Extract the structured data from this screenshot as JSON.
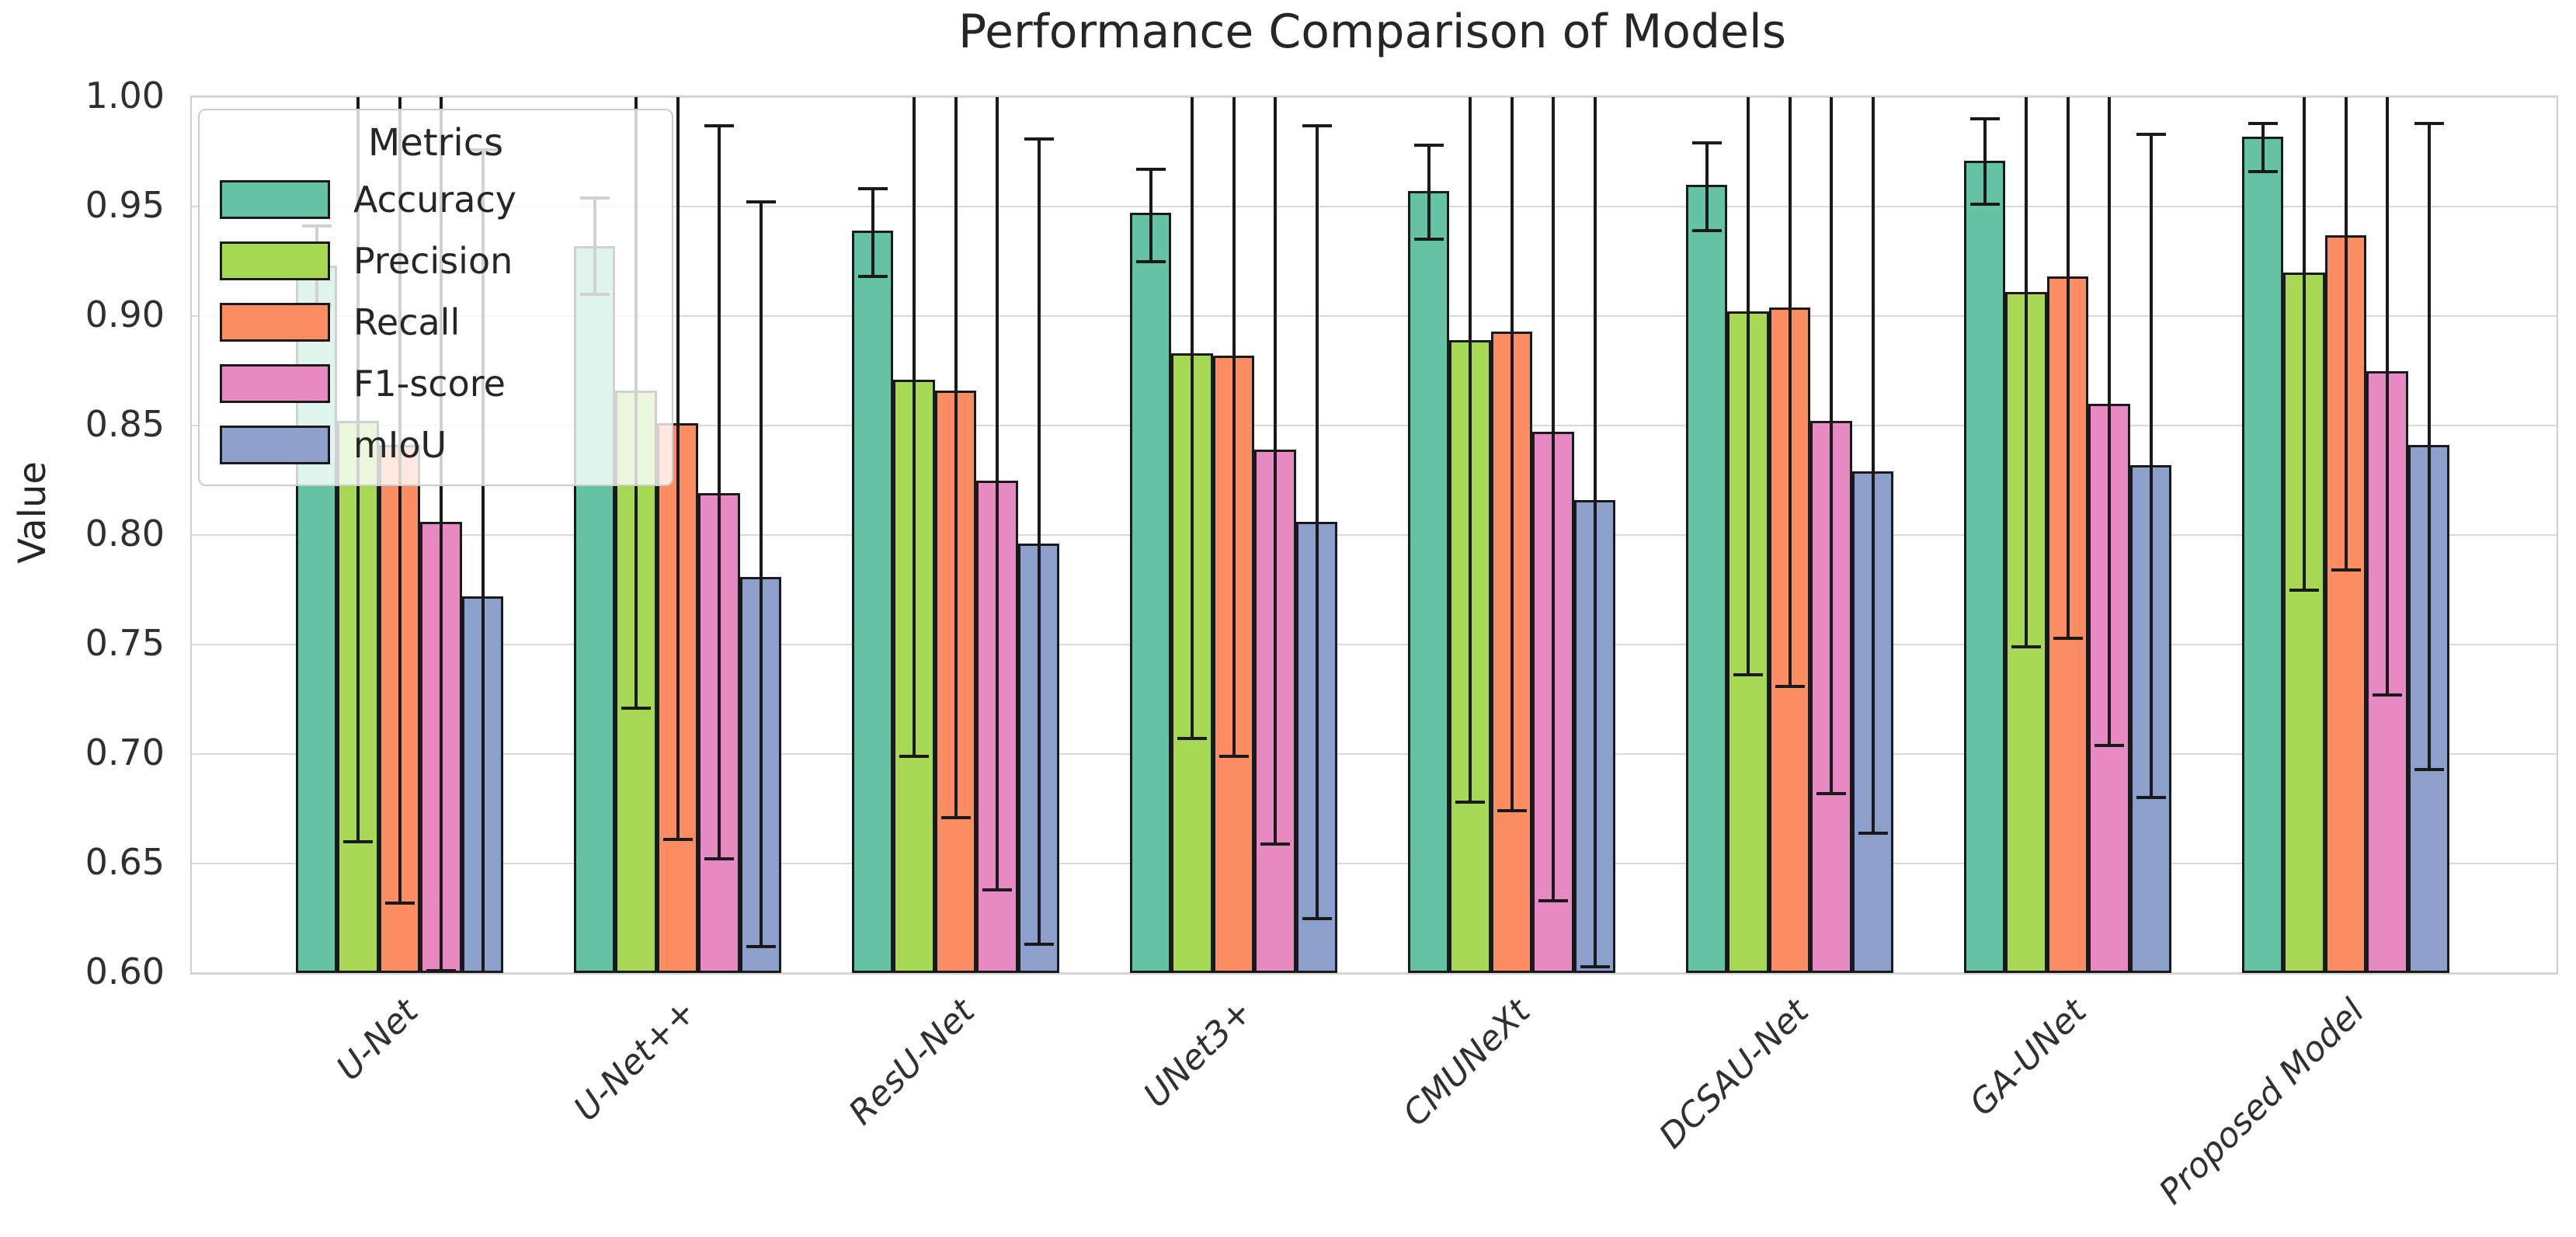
{
  "chart_data": {
    "type": "bar",
    "title": "Performance Comparison of Models",
    "xlabel": "",
    "ylabel": "Value",
    "ylim": [
      0.6,
      1.0
    ],
    "ytick_step": 0.05,
    "grid": "horizontal",
    "legend_title": "Metrics",
    "legend_position": "upper-left",
    "bar_edge_color": "#1a1a1a",
    "error_bar_color": "#1a1a1a",
    "categories": [
      "U-Net",
      "U-Net++",
      "ResU-Net",
      "UNet3+",
      "CMUNeXt",
      "DCSAU-Net",
      "GA-UNet",
      "Proposed Model"
    ],
    "series": [
      {
        "name": "Accuracy",
        "color": "#66c2a5",
        "values": [
          0.923,
          0.932,
          0.939,
          0.947,
          0.957,
          0.96,
          0.971,
          0.982
        ],
        "err_low": [
          0.905,
          0.91,
          0.918,
          0.925,
          0.935,
          0.939,
          0.951,
          0.966
        ],
        "err_high": [
          0.941,
          0.954,
          0.958,
          0.967,
          0.978,
          0.979,
          0.99,
          0.988
        ]
      },
      {
        "name": "Precision",
        "color": "#a6d854",
        "values": [
          0.852,
          0.866,
          0.871,
          0.883,
          0.889,
          0.902,
          0.911,
          0.92
        ],
        "err_low": [
          0.66,
          0.721,
          0.699,
          0.707,
          0.678,
          0.736,
          0.749,
          0.775
        ],
        "err_high": [
          1.01,
          1.01,
          1.01,
          1.01,
          1.01,
          1.01,
          1.01,
          1.01
        ]
      },
      {
        "name": "Recall",
        "color": "#fc8d62",
        "values": [
          0.841,
          0.851,
          0.866,
          0.882,
          0.893,
          0.904,
          0.918,
          0.937
        ],
        "err_low": [
          0.632,
          0.661,
          0.671,
          0.699,
          0.674,
          0.731,
          0.753,
          0.784
        ],
        "err_high": [
          1.01,
          1.01,
          1.01,
          1.01,
          1.01,
          1.01,
          1.01,
          1.01
        ]
      },
      {
        "name": "F1-score",
        "color": "#e78ac3",
        "values": [
          0.806,
          0.819,
          0.825,
          0.839,
          0.847,
          0.852,
          0.86,
          0.875
        ],
        "err_low": [
          0.601,
          0.652,
          0.638,
          0.659,
          0.633,
          0.682,
          0.704,
          0.727
        ],
        "err_high": [
          1.01,
          0.987,
          1.01,
          1.01,
          1.01,
          1.01,
          1.01,
          1.01
        ]
      },
      {
        "name": "mIoU",
        "color": "#8da0cb",
        "values": [
          0.772,
          0.781,
          0.796,
          0.806,
          0.816,
          0.829,
          0.832,
          0.841
        ],
        "err_low": [
          0.59,
          0.612,
          0.613,
          0.625,
          0.603,
          0.664,
          0.68,
          0.693
        ],
        "err_high": [
          0.976,
          0.952,
          0.981,
          0.987,
          1.01,
          1.01,
          0.983,
          0.988
        ]
      }
    ]
  }
}
